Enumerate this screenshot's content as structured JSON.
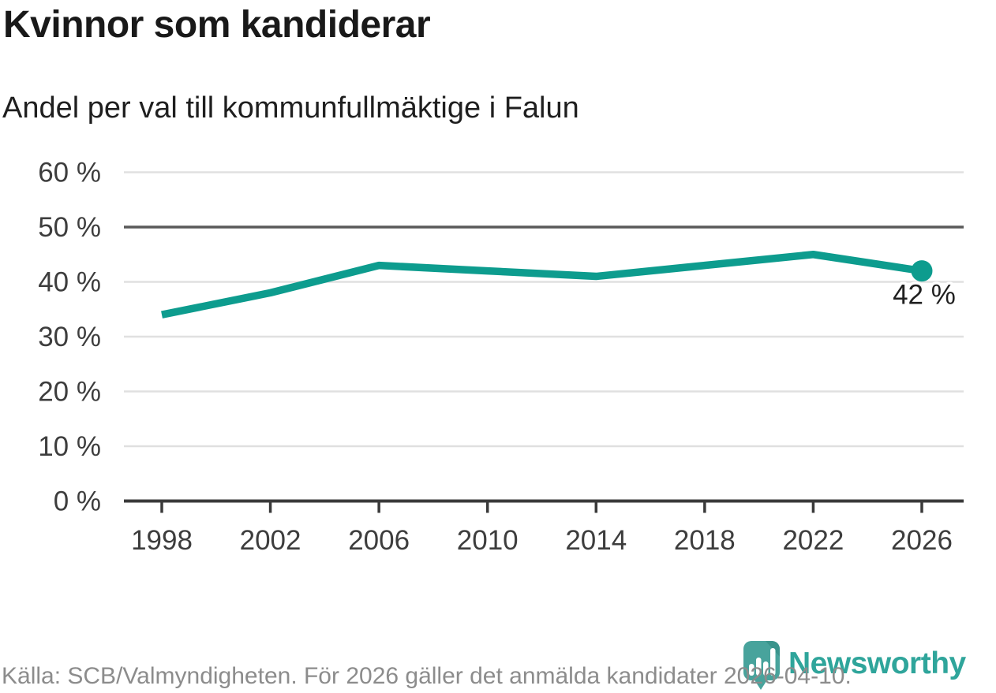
{
  "header": {
    "title": "Kvinnor som kandiderar",
    "subtitle": "Andel per val till kommunfullmäktige i Falun"
  },
  "chart_data": {
    "type": "line",
    "title": "Kvinnor som kandiderar",
    "subtitle": "Andel per val till kommunfullmäktige i Falun",
    "x": [
      1998,
      2002,
      2006,
      2010,
      2014,
      2018,
      2022,
      2026
    ],
    "x_tick_labels": [
      "1998",
      "2002",
      "2006",
      "2010",
      "2014",
      "2018",
      "2022",
      "2026"
    ],
    "values": [
      34,
      38,
      43,
      42,
      41,
      43,
      45,
      42
    ],
    "y_tick_values": [
      60,
      50,
      40,
      30,
      20,
      10,
      0
    ],
    "y_tick_labels": [
      "60 %",
      "50 %",
      "40 %",
      "30 %",
      "20 %",
      "10 %",
      "0 %"
    ],
    "ylim": [
      0,
      62
    ],
    "xlabel": "",
    "ylabel": "",
    "grid": "horizontal",
    "legend": "none",
    "benchmark_line": 50,
    "end_label": "42 %",
    "line_color": "#0d9c8e",
    "gridline_color": "#e0e0e0",
    "highlight_gridline_color": "#5a5a5a",
    "axis_color": "#3a3a3a",
    "tick_label_color": "#3d3d3d",
    "label_color": "#1f1f1f"
  },
  "footer": {
    "source": "Källa: SCB/Valmyndigheten. För 2026 gäller det anmälda kandidater 2026-04-10.",
    "brand": "Newsworthy",
    "brand_color": "#2fa59b",
    "brand_icon_color": "#48a39c",
    "brand_icon_shade_color": "#3a948c"
  }
}
